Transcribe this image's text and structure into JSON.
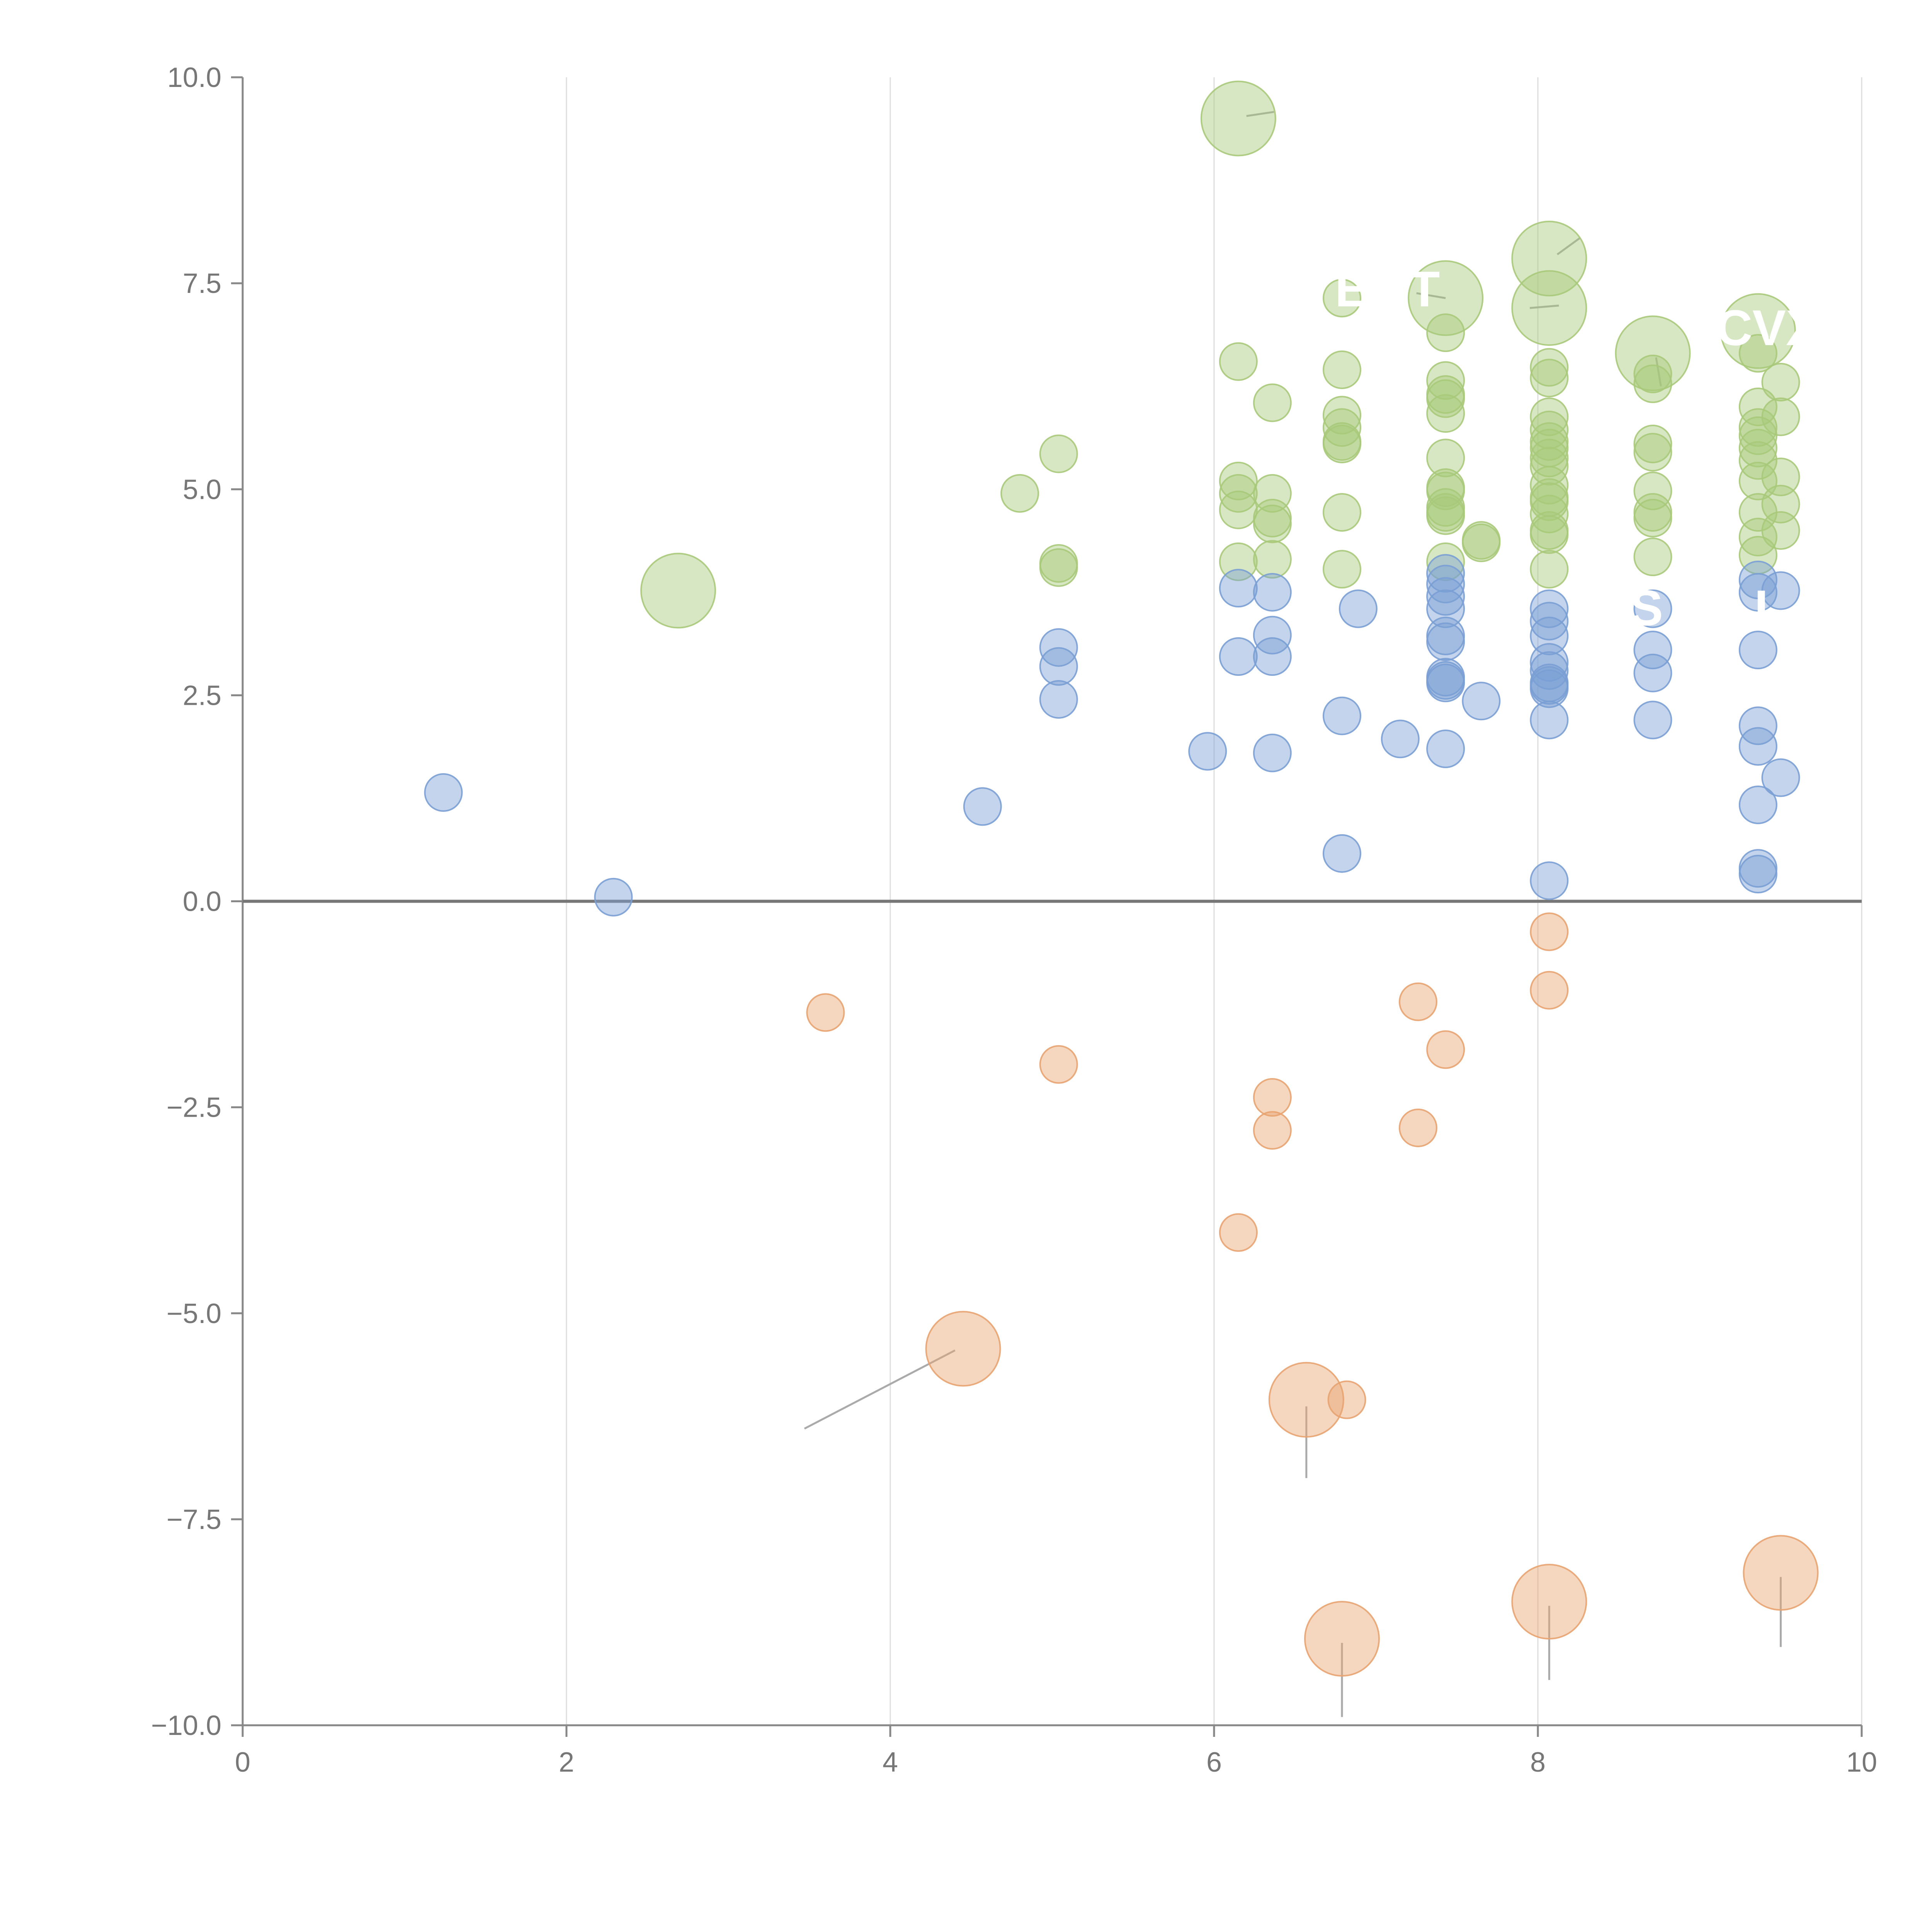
{
  "chart_data": {
    "type": "scatter",
    "title": "",
    "xlabel": "",
    "ylabel": "",
    "xlim": [
      0,
      10
    ],
    "ylim": [
      -10,
      10
    ],
    "x_ticks": [
      0,
      2,
      4,
      6,
      8,
      10
    ],
    "x_tick_labels": [
      "0",
      "2",
      "4",
      "6",
      "8",
      "10"
    ],
    "y_ticks": [
      10,
      7.5,
      5,
      2.5,
      0,
      -2.5,
      -5,
      -7.5,
      -10
    ],
    "y_tick_labels": [
      "10.0",
      "7.5",
      "5.0",
      "2.5",
      "0.0",
      "−2.5",
      "−5.0",
      "−7.5",
      "−10.0"
    ],
    "grid": "vertical",
    "zero_line": true,
    "series": [
      {
        "name": "green",
        "color": "#a9c97a",
        "points": [
          [
            2.69,
            3.77,
            1.6
          ],
          [
            6.15,
            9.5,
            1.6
          ],
          [
            4.8,
            4.95,
            1
          ],
          [
            5.04,
            5.43,
            1
          ],
          [
            5.04,
            4.1,
            1
          ],
          [
            5.04,
            4.05,
            1
          ],
          [
            6.15,
            6.55,
            1
          ],
          [
            6.15,
            5.1,
            1
          ],
          [
            6.15,
            4.95,
            1
          ],
          [
            6.15,
            4.75,
            1
          ],
          [
            6.15,
            4.12,
            1
          ],
          [
            6.36,
            6.05,
            1
          ],
          [
            6.36,
            4.95,
            1
          ],
          [
            6.36,
            4.65,
            1
          ],
          [
            6.36,
            4.58,
            1
          ],
          [
            6.36,
            4.15,
            1
          ],
          [
            6.79,
            7.32,
            1
          ],
          [
            6.79,
            6.45,
            1
          ],
          [
            6.79,
            5.9,
            1
          ],
          [
            6.79,
            5.75,
            1
          ],
          [
            6.79,
            5.58,
            1
          ],
          [
            6.79,
            5.55,
            1
          ],
          [
            6.79,
            4.72,
            1
          ],
          [
            6.79,
            4.03,
            1
          ],
          [
            7.43,
            7.32,
            1.6
          ],
          [
            7.43,
            6.9,
            1
          ],
          [
            7.43,
            6.32,
            1
          ],
          [
            7.43,
            6.15,
            1
          ],
          [
            7.43,
            6.1,
            1
          ],
          [
            7.43,
            5.92,
            1
          ],
          [
            7.43,
            5.38,
            1
          ],
          [
            7.43,
            5.02,
            1
          ],
          [
            7.43,
            4.98,
            1
          ],
          [
            7.43,
            4.78,
            1
          ],
          [
            7.43,
            4.72,
            1
          ],
          [
            7.43,
            4.68,
            1
          ],
          [
            7.43,
            4.12,
            1
          ],
          [
            7.65,
            4.38,
            1
          ],
          [
            7.65,
            4.35,
            1
          ],
          [
            8.07,
            7.8,
            1.6
          ],
          [
            8.07,
            7.2,
            1.6
          ],
          [
            8.07,
            6.48,
            1
          ],
          [
            8.07,
            6.35,
            1
          ],
          [
            8.07,
            5.88,
            1
          ],
          [
            8.07,
            5.72,
            1
          ],
          [
            8.07,
            5.58,
            1
          ],
          [
            8.07,
            5.5,
            1
          ],
          [
            8.07,
            5.38,
            1
          ],
          [
            8.07,
            5.28,
            1
          ],
          [
            8.07,
            5.05,
            1
          ],
          [
            8.07,
            4.9,
            1
          ],
          [
            8.07,
            4.85,
            1
          ],
          [
            8.07,
            4.7,
            1
          ],
          [
            8.07,
            4.5,
            1
          ],
          [
            8.07,
            4.45,
            1
          ],
          [
            8.07,
            4.03,
            1
          ],
          [
            8.71,
            6.65,
            1.6
          ],
          [
            8.71,
            6.4,
            1
          ],
          [
            8.71,
            6.28,
            1
          ],
          [
            8.71,
            5.55,
            1
          ],
          [
            8.71,
            5.45,
            1
          ],
          [
            8.71,
            4.98,
            1
          ],
          [
            8.71,
            4.72,
            1
          ],
          [
            8.71,
            4.65,
            1
          ],
          [
            8.71,
            4.18,
            1
          ],
          [
            9.36,
            6.92,
            1.6
          ],
          [
            9.36,
            6.65,
            1
          ],
          [
            9.36,
            6.0,
            1
          ],
          [
            9.36,
            5.75,
            1
          ],
          [
            9.36,
            5.65,
            1
          ],
          [
            9.36,
            5.5,
            1
          ],
          [
            9.36,
            5.35,
            1
          ],
          [
            9.36,
            5.1,
            1
          ],
          [
            9.36,
            4.72,
            1
          ],
          [
            9.36,
            4.42,
            1
          ],
          [
            9.36,
            4.2,
            1
          ],
          [
            9.5,
            6.3,
            1
          ],
          [
            9.5,
            5.88,
            1
          ],
          [
            9.5,
            5.15,
            1
          ],
          [
            9.5,
            4.82,
            1
          ],
          [
            9.5,
            4.5,
            1
          ]
        ]
      },
      {
        "name": "blue",
        "color": "#7a9fd4",
        "points": [
          [
            1.24,
            1.32,
            1
          ],
          [
            2.29,
            0.05,
            1
          ],
          [
            4.57,
            1.15,
            1
          ],
          [
            5.04,
            3.08,
            1
          ],
          [
            5.04,
            2.85,
            1
          ],
          [
            5.04,
            2.45,
            1
          ],
          [
            5.96,
            1.82,
            1
          ],
          [
            6.15,
            3.8,
            1
          ],
          [
            6.15,
            2.97,
            1
          ],
          [
            6.36,
            3.75,
            1
          ],
          [
            6.36,
            3.23,
            1
          ],
          [
            6.36,
            2.97,
            1
          ],
          [
            6.36,
            1.8,
            1
          ],
          [
            6.79,
            2.25,
            1
          ],
          [
            6.79,
            0.58,
            1
          ],
          [
            6.89,
            3.55,
            1
          ],
          [
            7.15,
            1.97,
            1
          ],
          [
            7.43,
            3.98,
            1
          ],
          [
            7.43,
            3.85,
            1
          ],
          [
            7.43,
            3.7,
            1
          ],
          [
            7.43,
            3.55,
            1
          ],
          [
            7.43,
            3.22,
            1
          ],
          [
            7.43,
            3.15,
            1
          ],
          [
            7.43,
            2.72,
            1
          ],
          [
            7.43,
            2.68,
            1
          ],
          [
            7.43,
            2.65,
            1
          ],
          [
            7.43,
            1.85,
            1
          ],
          [
            7.65,
            2.43,
            1
          ],
          [
            8.07,
            3.55,
            1
          ],
          [
            8.07,
            3.4,
            1
          ],
          [
            8.07,
            3.22,
            1
          ],
          [
            8.07,
            2.9,
            1
          ],
          [
            8.07,
            2.8,
            1
          ],
          [
            8.07,
            2.65,
            1
          ],
          [
            8.07,
            2.62,
            1
          ],
          [
            8.07,
            2.58,
            1
          ],
          [
            8.07,
            2.2,
            1
          ],
          [
            8.07,
            0.25,
            1
          ],
          [
            8.71,
            3.55,
            1
          ],
          [
            8.71,
            3.05,
            1
          ],
          [
            8.71,
            2.77,
            1
          ],
          [
            8.71,
            2.2,
            1
          ],
          [
            9.36,
            3.9,
            1
          ],
          [
            9.36,
            3.75,
            1
          ],
          [
            9.36,
            3.05,
            1
          ],
          [
            9.36,
            2.13,
            1
          ],
          [
            9.36,
            1.88,
            1
          ],
          [
            9.36,
            1.17,
            1
          ],
          [
            9.36,
            0.4,
            1
          ],
          [
            9.36,
            0.33,
            1
          ],
          [
            9.5,
            3.77,
            1
          ],
          [
            9.5,
            1.5,
            1
          ]
        ]
      },
      {
        "name": "orange",
        "color": "#e8a370",
        "points": [
          [
            3.6,
            -1.35,
            1
          ],
          [
            5.04,
            -1.98,
            1
          ],
          [
            6.15,
            -4.02,
            1
          ],
          [
            6.36,
            -2.38,
            1
          ],
          [
            6.36,
            -2.78,
            1
          ],
          [
            6.82,
            -6.05,
            1
          ],
          [
            7.26,
            -1.22,
            1
          ],
          [
            7.26,
            -2.75,
            1
          ],
          [
            7.43,
            -1.8,
            1
          ],
          [
            8.07,
            -0.37,
            1
          ],
          [
            8.07,
            -1.08,
            1
          ],
          [
            4.45,
            -5.43,
            1.6
          ],
          [
            6.57,
            -6.05,
            1.6
          ],
          [
            6.79,
            -8.95,
            1.6
          ],
          [
            8.07,
            -8.5,
            1.6
          ],
          [
            9.5,
            -8.15,
            1.6
          ]
        ]
      }
    ],
    "labels": [
      {
        "text": "E",
        "x": 6.85,
        "y": 7.22,
        "color": "#ffffff"
      },
      {
        "text": "T",
        "x": 7.3,
        "y": 7.22,
        "color": "#ffffff"
      },
      {
        "text": "CVX",
        "x": 9.42,
        "y": 6.75,
        "color": "#ffffff"
      },
      {
        "text": "S",
        "x": 8.67,
        "y": 3.35,
        "color": "#ffffff"
      },
      {
        "text": "I",
        "x": 9.38,
        "y": 3.35,
        "color": "#ffffff"
      }
    ],
    "leader_lines": [
      [
        [
          3.47,
          -6.4
        ],
        [
          4.4,
          -5.45
        ]
      ],
      [
        [
          6.57,
          -6.13
        ],
        [
          6.57,
          -7.0
        ]
      ],
      [
        [
          6.79,
          -9.0
        ],
        [
          6.79,
          -9.9
        ]
      ],
      [
        [
          8.07,
          -8.55
        ],
        [
          8.07,
          -9.45
        ]
      ],
      [
        [
          9.5,
          -8.2
        ],
        [
          9.5,
          -9.05
        ]
      ],
      [
        [
          6.2,
          9.53
        ],
        [
          6.37,
          9.58
        ]
      ],
      [
        [
          8.12,
          7.85
        ],
        [
          8.26,
          8.05
        ]
      ],
      [
        [
          7.25,
          7.38
        ],
        [
          7.43,
          7.32
        ]
      ],
      [
        [
          7.95,
          7.2
        ],
        [
          8.13,
          7.23
        ]
      ],
      [
        [
          8.73,
          6.6
        ],
        [
          8.76,
          6.25
        ]
      ]
    ]
  }
}
